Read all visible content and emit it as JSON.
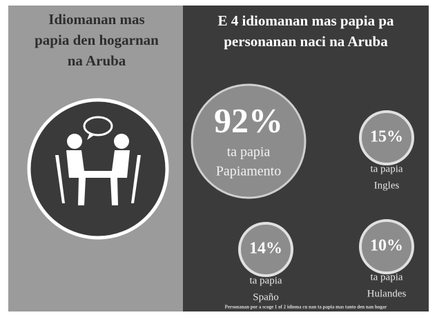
{
  "left": {
    "title": [
      "Idiomanan mas",
      "papia den hogarnan",
      "na Aruba"
    ]
  },
  "right": {
    "title": [
      "E 4 idiomanan mas papia pa",
      "personanan naci na Aruba"
    ],
    "stats": [
      {
        "percent": "92%",
        "caption": "ta papia",
        "language": "Papiamento"
      },
      {
        "percent": "15%",
        "caption": "ta papia",
        "language": "Ingles"
      },
      {
        "percent": "14%",
        "caption": "ta papia",
        "language": "Spaño"
      },
      {
        "percent": "10%",
        "caption": "ta papia",
        "language": "Hulandes"
      }
    ],
    "footnote": "Personanan por a scoge 1 of 2 idioma cu nan ta papia mas tanto den nan hogar"
  }
}
